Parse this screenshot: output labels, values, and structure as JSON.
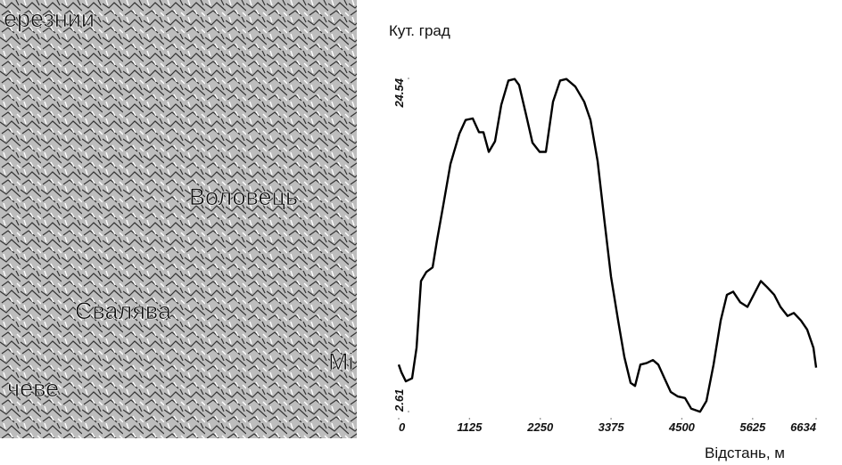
{
  "map": {
    "labels": [
      "ерезнии",
      "Воловець",
      "Свалява",
      "Мі",
      "чеве"
    ]
  },
  "chart_data": {
    "type": "line",
    "ylabel": "Кут. град",
    "xlabel": "Відстань, м",
    "xlim": [
      0,
      6634
    ],
    "ylim": [
      2.61,
      24.54
    ],
    "xticks": [
      0,
      1125,
      2250,
      3375,
      4500,
      5625,
      6634
    ],
    "yticks": [
      2.61,
      24.54
    ],
    "color": "#000000",
    "x": [
      0,
      43,
      113,
      213,
      283,
      354,
      439,
      539,
      610,
      709,
      822,
      964,
      1063,
      1177,
      1276,
      1347,
      1432,
      1531,
      1630,
      1743,
      1843,
      1914,
      2027,
      2126,
      2240,
      2339,
      2452,
      2566,
      2665,
      2807,
      2948,
      3048,
      3161,
      3274,
      3374,
      3487,
      3586,
      3686,
      3756,
      3841,
      3941,
      4040,
      4125,
      4224,
      4323,
      4437,
      4550,
      4649,
      4790,
      4890,
      5004,
      5117,
      5216,
      5316,
      5429,
      5542,
      5642,
      5755,
      5854,
      5968,
      6067,
      6180,
      6280,
      6393,
      6492,
      6592,
      6634
    ],
    "values": [
      5.7,
      5.2,
      4.6,
      4.8,
      6.8,
      11.2,
      11.8,
      12.1,
      13.9,
      16.2,
      18.9,
      20.9,
      21.8,
      21.9,
      21.0,
      21.0,
      19.7,
      20.4,
      22.8,
      24.4,
      24.5,
      24.1,
      22.1,
      20.3,
      19.7,
      19.7,
      23.0,
      24.4,
      24.5,
      24.0,
      23.0,
      21.8,
      19.1,
      15.0,
      11.5,
      8.6,
      6.2,
      4.5,
      4.3,
      5.7,
      5.8,
      6.0,
      5.7,
      4.8,
      3.9,
      3.6,
      3.5,
      2.8,
      2.6,
      3.3,
      5.7,
      8.6,
      10.3,
      10.5,
      9.8,
      9.5,
      10.3,
      11.2,
      10.8,
      10.3,
      9.5,
      8.9,
      9.1,
      8.6,
      8.0,
      6.8,
      5.5
    ]
  }
}
